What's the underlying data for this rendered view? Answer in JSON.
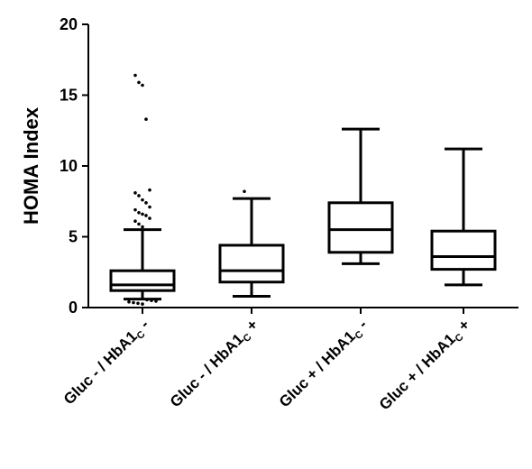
{
  "chart_data": {
    "type": "boxplot",
    "title": "",
    "xlabel": "",
    "ylabel": "HOMA Index",
    "ylim": [
      0,
      20
    ],
    "yticks": [
      0,
      5,
      10,
      15,
      20
    ],
    "grid": false,
    "categories": [
      {
        "prefix": "Gluc - / HbA1",
        "sub": "C",
        "suffix": " -"
      },
      {
        "prefix": "Gluc - / HbA1",
        "sub": "C",
        "suffix": " +"
      },
      {
        "prefix": "Gluc + / HbA1",
        "sub": "C",
        "suffix": " -"
      },
      {
        "prefix": "Gluc + / HbA1",
        "sub": "C",
        "suffix": " +"
      }
    ],
    "boxes": [
      {
        "whisker_low": 0.6,
        "q1": 1.2,
        "median": 1.6,
        "q3": 2.6,
        "whisker_high": 5.5,
        "outliers": [
          16.4,
          15.9,
          15.7,
          13.3,
          8.3,
          8.1,
          7.9,
          7.6,
          7.4,
          7.1,
          6.9,
          6.7,
          6.6,
          6.5,
          6.3,
          6.1,
          5.9,
          5.7,
          0.55,
          0.5,
          0.45,
          0.4,
          0.35,
          0.3,
          0.25
        ]
      },
      {
        "whisker_low": 0.8,
        "q1": 1.8,
        "median": 2.6,
        "q3": 4.4,
        "whisker_high": 7.7,
        "outliers": [
          8.2
        ]
      },
      {
        "whisker_low": 3.1,
        "q1": 3.9,
        "median": 5.5,
        "q3": 7.4,
        "whisker_high": 12.6,
        "outliers": []
      },
      {
        "whisker_low": 1.6,
        "q1": 2.7,
        "median": 3.6,
        "q3": 5.4,
        "whisker_high": 11.2,
        "outliers": []
      }
    ]
  }
}
